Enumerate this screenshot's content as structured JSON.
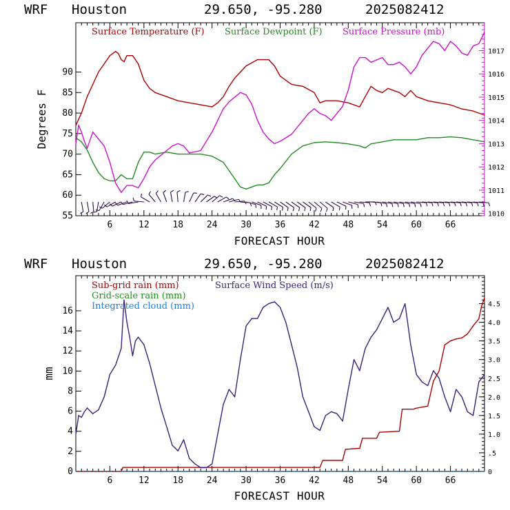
{
  "chart_data": [
    {
      "type": "line",
      "header": {
        "model": "WRF",
        "location": "Houston",
        "coords": "29.650, -95.280",
        "run": "2025082412"
      },
      "xlabel": "FORECAST HOUR",
      "ylabel": "Degrees F",
      "x_ticks": [
        6,
        12,
        18,
        24,
        30,
        36,
        42,
        48,
        54,
        60,
        66
      ],
      "x_range": [
        0,
        72
      ],
      "left_axis": {
        "range": [
          55,
          102
        ],
        "ticks": [
          55,
          60,
          65,
          70,
          75,
          80,
          85,
          90
        ]
      },
      "right_axis": {
        "range": [
          1009.9,
          1018.2
        ],
        "ticks": [
          1010,
          1011,
          1012,
          1013,
          1014,
          1015,
          1016,
          1017
        ]
      },
      "grid": false,
      "legend_placement": "top",
      "series": [
        {
          "name": "Surface Temperature (F)",
          "color": "#aa0000",
          "axis": "left",
          "x": [
            0,
            1,
            2,
            3,
            4,
            5,
            6,
            7,
            7.5,
            8,
            8.5,
            9,
            10,
            11,
            12,
            13,
            14,
            15,
            16,
            18,
            20,
            22,
            24,
            25,
            26,
            27,
            28,
            29,
            30,
            32,
            34,
            35,
            36,
            37,
            38,
            40,
            42,
            43,
            44,
            46,
            48,
            50,
            51,
            52,
            53,
            54,
            55,
            56,
            57,
            58,
            59,
            60,
            62,
            64,
            66,
            68,
            70,
            72
          ],
          "values": [
            77,
            80,
            84,
            87,
            90,
            92,
            94,
            95,
            94.5,
            93,
            92.5,
            94,
            94,
            92,
            88,
            86,
            85,
            84.5,
            84,
            83,
            82.5,
            82,
            81.5,
            82.5,
            84,
            86.5,
            88.5,
            90,
            91.5,
            93,
            93,
            91.5,
            89,
            88,
            87,
            86.5,
            85,
            82.5,
            83,
            83,
            82.5,
            81.5,
            84,
            86.5,
            85.5,
            85,
            86,
            85.5,
            85,
            84,
            85.5,
            84,
            83,
            82.5,
            82,
            81,
            80.5,
            79.5
          ]
        },
        {
          "name": "Surface Dewpoint (F)",
          "color": "#228b22",
          "axis": "left",
          "x": [
            0,
            1,
            2,
            3,
            4,
            5,
            6,
            7,
            8,
            9,
            10,
            11,
            12,
            13,
            14,
            16,
            18,
            20,
            22,
            24,
            26,
            27,
            28,
            29,
            30,
            31,
            32,
            33,
            34,
            35,
            36,
            38,
            40,
            42,
            44,
            46,
            48,
            50,
            51,
            52,
            54,
            56,
            58,
            60,
            62,
            64,
            66,
            68,
            70,
            72
          ],
          "values": [
            74,
            73,
            71,
            68,
            65.5,
            64,
            63.5,
            63.5,
            65,
            64,
            64,
            68,
            70.5,
            70.5,
            70,
            70.5,
            70,
            70,
            70,
            69.5,
            68,
            66,
            64,
            62,
            61.5,
            62,
            62.5,
            62.5,
            63,
            65,
            66.5,
            70,
            72,
            72.8,
            73,
            72.8,
            72.5,
            72,
            71.5,
            72.5,
            73,
            73.5,
            73.5,
            73.5,
            74,
            74,
            74.2,
            74,
            73.5,
            73
          ]
        },
        {
          "name": "Surface Pressure (mb)",
          "color": "#cc11cc",
          "axis": "right",
          "x": [
            0,
            0.5,
            1,
            1.5,
            2,
            3,
            4,
            5,
            6,
            7,
            8,
            9,
            10,
            11,
            12,
            13,
            14,
            15,
            16,
            17,
            18,
            19,
            20,
            22,
            23,
            24,
            25,
            26,
            27,
            28,
            29,
            30,
            31,
            32,
            33,
            34,
            35,
            36,
            38,
            39,
            40,
            41,
            42,
            43,
            44,
            45,
            46,
            47,
            48,
            49,
            50,
            51,
            52,
            53,
            54,
            55,
            56,
            57,
            58,
            59,
            60,
            61,
            62,
            63,
            64,
            65,
            66,
            67,
            68,
            69,
            70,
            71,
            72
          ],
          "values": [
            1013,
            1013.8,
            1013.5,
            1013.1,
            1012.8,
            1013.5,
            1013.2,
            1012.9,
            1012.2,
            1011.3,
            1010.9,
            1011.2,
            1011.2,
            1011.1,
            1011.5,
            1012.0,
            1012.3,
            1012.5,
            1012.7,
            1012.9,
            1013.0,
            1012.9,
            1012.6,
            1012.7,
            1013.1,
            1013.5,
            1014.0,
            1014.5,
            1014.8,
            1015.0,
            1015.2,
            1015.1,
            1014.7,
            1014.0,
            1013.5,
            1013.2,
            1013.0,
            1013.1,
            1013.4,
            1013.7,
            1014.0,
            1014.3,
            1014.5,
            1014.3,
            1014.2,
            1014.0,
            1014.3,
            1014.6,
            1015.3,
            1016.3,
            1016.7,
            1016.7,
            1016.5,
            1016.6,
            1016.7,
            1016.4,
            1016.4,
            1016.5,
            1016.3,
            1016.0,
            1016.3,
            1016.8,
            1017.1,
            1017.4,
            1017.3,
            1017.0,
            1017.4,
            1017.2,
            1016.9,
            1016.8,
            1017.2,
            1017.3,
            1017.8
          ]
        }
      ],
      "wind_barbs": [
        {
          "x": 1,
          "dir": 170
        },
        {
          "x": 2,
          "dir": 170
        },
        {
          "x": 3,
          "dir": 175
        },
        {
          "x": 4,
          "dir": 190
        },
        {
          "x": 5,
          "dir": 210
        },
        {
          "x": 6,
          "dir": 230
        },
        {
          "x": 7,
          "dir": 240
        },
        {
          "x": 8,
          "dir": 245
        },
        {
          "x": 9,
          "dir": 250
        },
        {
          "x": 10,
          "dir": 255
        },
        {
          "x": 11,
          "dir": 260
        },
        {
          "x": 12,
          "dir": 275
        },
        {
          "x": 13,
          "dir": 300
        },
        {
          "x": 14,
          "dir": 320
        },
        {
          "x": 15,
          "dir": 330
        },
        {
          "x": 16,
          "dir": 340
        },
        {
          "x": 17,
          "dir": 350
        },
        {
          "x": 18,
          "dir": 355
        },
        {
          "x": 19,
          "dir": 10
        },
        {
          "x": 20,
          "dir": 25
        },
        {
          "x": 21,
          "dir": 35
        },
        {
          "x": 22,
          "dir": 45
        },
        {
          "x": 23,
          "dir": 55
        },
        {
          "x": 24,
          "dir": 50
        },
        {
          "x": 25,
          "dir": 60
        },
        {
          "x": 26,
          "dir": 70
        },
        {
          "x": 27,
          "dir": 75
        },
        {
          "x": 28,
          "dir": 85
        },
        {
          "x": 29,
          "dir": 95
        },
        {
          "x": 30,
          "dir": 105
        },
        {
          "x": 31,
          "dir": 110
        },
        {
          "x": 32,
          "dir": 115
        },
        {
          "x": 33,
          "dir": 118
        },
        {
          "x": 34,
          "dir": 120
        },
        {
          "x": 35,
          "dir": 122
        },
        {
          "x": 36,
          "dir": 125
        },
        {
          "x": 37,
          "dir": 125
        },
        {
          "x": 38,
          "dir": 125
        },
        {
          "x": 39,
          "dir": 125
        },
        {
          "x": 40,
          "dir": 125
        },
        {
          "x": 41,
          "dir": 128
        },
        {
          "x": 42,
          "dir": 130
        },
        {
          "x": 43,
          "dir": 130
        },
        {
          "x": 44,
          "dir": 125
        },
        {
          "x": 45,
          "dir": 120
        },
        {
          "x": 46,
          "dir": 115
        },
        {
          "x": 47,
          "dir": 110
        },
        {
          "x": 48,
          "dir": 105
        },
        {
          "x": 49,
          "dir": 100
        },
        {
          "x": 50,
          "dir": 95
        },
        {
          "x": 51,
          "dir": 90
        },
        {
          "x": 52,
          "dir": 95
        },
        {
          "x": 53,
          "dir": 100
        },
        {
          "x": 54,
          "dir": 100
        },
        {
          "x": 55,
          "dir": 100
        },
        {
          "x": 56,
          "dir": 100
        },
        {
          "x": 57,
          "dir": 100
        },
        {
          "x": 58,
          "dir": 100
        },
        {
          "x": 59,
          "dir": 100
        },
        {
          "x": 60,
          "dir": 95
        },
        {
          "x": 61,
          "dir": 95
        },
        {
          "x": 62,
          "dir": 95
        },
        {
          "x": 63,
          "dir": 95
        },
        {
          "x": 64,
          "dir": 95
        },
        {
          "x": 65,
          "dir": 95
        },
        {
          "x": 66,
          "dir": 95
        },
        {
          "x": 67,
          "dir": 95
        },
        {
          "x": 68,
          "dir": 95
        },
        {
          "x": 69,
          "dir": 95
        },
        {
          "x": 70,
          "dir": 95
        },
        {
          "x": 71,
          "dir": 95
        }
      ]
    },
    {
      "type": "line",
      "header": {
        "model": "WRF",
        "location": "Houston",
        "coords": "29.650, -95.280",
        "run": "2025082412"
      },
      "xlabel": "FORECAST HOUR",
      "ylabel": "mm",
      "x_ticks": [
        6,
        12,
        18,
        24,
        30,
        36,
        42,
        48,
        54,
        60,
        66
      ],
      "x_range": [
        0,
        72
      ],
      "left_axis": {
        "range": [
          0,
          19.5
        ],
        "ticks": [
          0,
          2,
          4,
          6,
          8,
          10,
          12,
          14,
          16
        ]
      },
      "right_axis": {
        "range": [
          0,
          5.25
        ],
        "ticks": [
          "0",
          ".5",
          "1.0",
          "1.5",
          "2.0",
          "2.5",
          "3.0",
          "3.5",
          "4.0",
          "4.5"
        ]
      },
      "grid": false,
      "legend_placement": "top-left",
      "series": [
        {
          "name": "Sub-grid rain (mm)",
          "color": "#aa0000",
          "axis": "left",
          "x": [
            0,
            8,
            8.3,
            43,
            43.5,
            47,
            47.5,
            50,
            50.5,
            53,
            53.5,
            57,
            57.5,
            59.5,
            60,
            62,
            63,
            64,
            65,
            66,
            67,
            68,
            69,
            70,
            71,
            71.5,
            72
          ],
          "values": [
            0,
            0,
            0.4,
            0.4,
            1.1,
            1.1,
            2.2,
            2.3,
            3.3,
            3.3,
            3.9,
            4.0,
            6.2,
            6.2,
            6.3,
            6.5,
            9.0,
            10.0,
            12.6,
            13.0,
            13.2,
            13.3,
            13.7,
            14.5,
            15.2,
            16.5,
            17.3
          ]
        },
        {
          "name": "Grid-scale rain (mm)",
          "color": "#228b22",
          "axis": "left",
          "x": [
            0,
            72
          ],
          "values": [
            0,
            0
          ]
        },
        {
          "name": "Integrated cloud (mm)",
          "color": "#1e7fd8",
          "axis": "left",
          "x": [
            0,
            72
          ],
          "values": [
            0,
            0
          ]
        },
        {
          "name": "Surface Wind Speed (m/s)",
          "color": "#3a1f7a",
          "axis": "right",
          "x": [
            0,
            0.5,
            1,
            1.5,
            2,
            3,
            4,
            5,
            6,
            7,
            8,
            8.5,
            9,
            9.5,
            10,
            10.5,
            11,
            12,
            13,
            14,
            15,
            16,
            17,
            18,
            19,
            20,
            21,
            22,
            23,
            24,
            25,
            26,
            27,
            28,
            29,
            30,
            31,
            32,
            33,
            34,
            35,
            36,
            37,
            38,
            39,
            40,
            41,
            42,
            43,
            44,
            45,
            46,
            47,
            48,
            49,
            50,
            51,
            52,
            53,
            54,
            55,
            56,
            57,
            58,
            59,
            60,
            61,
            62,
            63,
            64,
            65,
            66,
            67,
            68,
            69,
            70,
            71,
            72
          ],
          "values": [
            1.0,
            1.5,
            1.45,
            1.6,
            1.7,
            1.55,
            1.65,
            2.0,
            2.6,
            2.85,
            3.3,
            4.6,
            4.0,
            3.6,
            3.1,
            3.5,
            3.6,
            3.4,
            2.9,
            2.3,
            1.7,
            1.2,
            0.7,
            0.55,
            0.85,
            0.35,
            0.2,
            0.1,
            0.1,
            0.2,
            1.0,
            1.8,
            2.2,
            2.0,
            3.0,
            3.9,
            4.1,
            4.1,
            4.4,
            4.5,
            4.55,
            4.4,
            4.0,
            3.4,
            2.8,
            2.0,
            1.6,
            1.2,
            1.1,
            1.5,
            1.6,
            1.55,
            1.35,
            2.2,
            3.0,
            2.7,
            3.3,
            3.6,
            3.8,
            4.1,
            4.4,
            4.0,
            4.1,
            4.5,
            3.4,
            2.6,
            2.4,
            2.3,
            2.7,
            2.5,
            2.0,
            1.6,
            2.2,
            2.0,
            1.6,
            1.5,
            2.4,
            2.6
          ]
        }
      ]
    }
  ]
}
